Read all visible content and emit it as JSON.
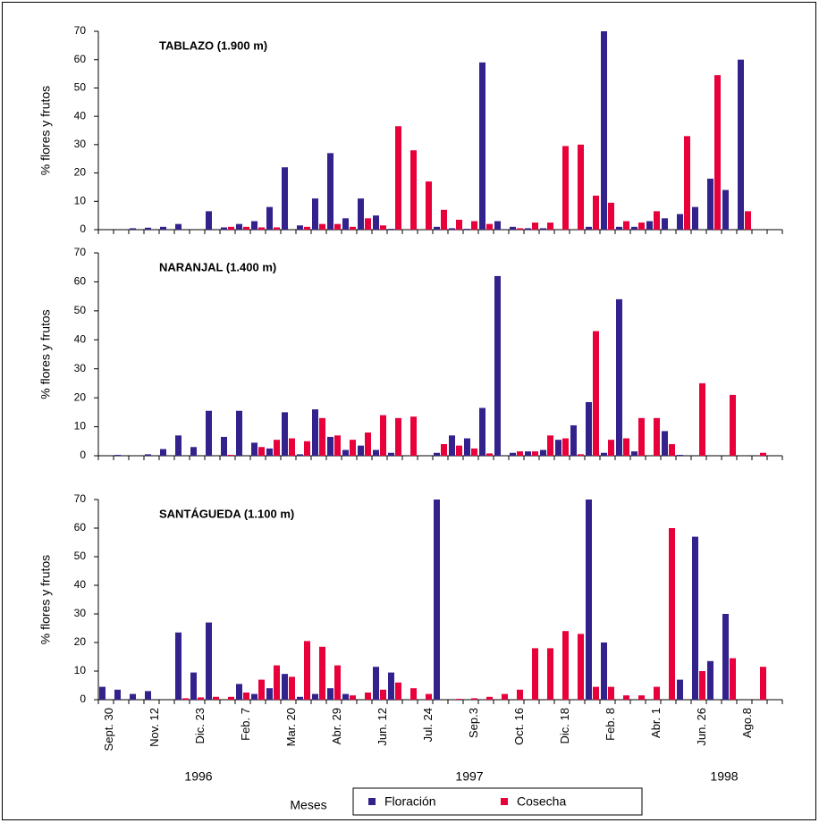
{
  "legend": [
    {
      "name": "Floración",
      "color": "#33218c"
    },
    {
      "name": "Cosecha",
      "color": "#e8003a"
    }
  ],
  "xlabel": "Meses",
  "years": [
    "1996",
    "1997",
    "1998"
  ],
  "chart_data": [
    {
      "type": "bar",
      "title": "TABLAZO (1.900 m)",
      "ylabel": "% flores y frutos",
      "ylim": [
        0,
        70
      ],
      "yticks": [
        0,
        10,
        20,
        30,
        40,
        50,
        60,
        70
      ],
      "series": [
        {
          "values": [
            0,
            0,
            0.5,
            0.7,
            1,
            2,
            0,
            6.5,
            0.8,
            2,
            3,
            8,
            22,
            1.5,
            11,
            27,
            4,
            11,
            5,
            0.3,
            0,
            0,
            1,
            0.5,
            0.3,
            59,
            3,
            1,
            0.5,
            0.5,
            0,
            0,
            1,
            70,
            1,
            1,
            3,
            4,
            5.5,
            8,
            18,
            14,
            60,
            0,
            0
          ]
        },
        {
          "values": [
            0,
            0,
            0,
            0,
            0,
            0,
            0,
            0,
            1,
            1,
            0.8,
            0.8,
            0,
            1,
            2,
            2,
            1,
            4,
            1.5,
            36.5,
            28,
            17,
            7,
            3.5,
            3,
            2,
            0,
            0.5,
            2.5,
            2.5,
            29.5,
            30,
            12,
            9.5,
            3,
            2.5,
            6.5,
            0,
            33,
            0,
            54.5,
            0,
            6.5,
            0,
            0
          ]
        }
      ]
    },
    {
      "type": "bar",
      "title": "NARANJAL (1.400 m)",
      "ylabel": "% flores y frutos",
      "ylim": [
        0,
        70
      ],
      "yticks": [
        0,
        10,
        20,
        30,
        40,
        50,
        60,
        70
      ],
      "series": [
        {
          "values": [
            0,
            0.3,
            0,
            0.5,
            2.3,
            7,
            3,
            15.5,
            6.5,
            15.5,
            4.5,
            2.5,
            15,
            0.5,
            16,
            6.5,
            2,
            3.5,
            2,
            1,
            0,
            0,
            1,
            7,
            6,
            16.5,
            62,
            1,
            1.5,
            2,
            5.5,
            10.5,
            18.5,
            1,
            54,
            1.5,
            0,
            8.5,
            0.3,
            0,
            0,
            0,
            0,
            0,
            0
          ]
        },
        {
          "values": [
            0,
            0,
            0,
            0,
            0,
            0,
            0,
            0,
            0.3,
            0,
            3,
            5.5,
            6,
            5,
            13,
            7,
            5.5,
            8,
            14,
            13,
            13.5,
            0,
            4,
            3.5,
            2.5,
            0.8,
            0,
            1.5,
            1.5,
            7,
            6,
            0.5,
            43,
            5.5,
            6,
            13,
            13,
            4,
            0,
            25,
            0,
            21,
            0,
            1,
            0
          ]
        }
      ]
    },
    {
      "type": "bar",
      "title": "SANTÁGUEDA (1.100 m)",
      "ylabel": "% flores y frutos",
      "ylim": [
        0,
        70
      ],
      "yticks": [
        0,
        10,
        20,
        30,
        40,
        50,
        60,
        70
      ],
      "categories": [
        "Sept. 30",
        null,
        null,
        "Nov. 12",
        null,
        null,
        "Dic. 23",
        null,
        null,
        "Feb. 7",
        null,
        null,
        "Mar. 20",
        null,
        null,
        "Abr. 29",
        null,
        null,
        "Jun. 12",
        null,
        null,
        "Jul. 24",
        null,
        null,
        "Sep.3",
        null,
        null,
        "Oct. 16",
        null,
        null,
        "Dic. 18",
        null,
        null,
        "Feb. 8",
        null,
        null,
        "Abr. 1",
        null,
        null,
        "Jun. 26",
        null,
        null,
        "Ago.8",
        null,
        null
      ],
      "series": [
        {
          "values": [
            4.5,
            3.5,
            2,
            3,
            0,
            23.5,
            9.5,
            27,
            0,
            5.5,
            2,
            4,
            9,
            1,
            2,
            4,
            2,
            0,
            11.5,
            9.5,
            0,
            0,
            70,
            0,
            0,
            0,
            0,
            0,
            0,
            0,
            0,
            0,
            70,
            20,
            0,
            0,
            0,
            0,
            7,
            57,
            13.5,
            30,
            0,
            0,
            0
          ]
        },
        {
          "values": [
            0,
            0,
            0,
            0,
            0,
            0.5,
            0.8,
            1,
            1,
            2.5,
            7,
            12,
            8,
            20.5,
            18.5,
            12,
            1.5,
            2.5,
            3.5,
            6,
            4,
            2,
            0,
            0.3,
            0.5,
            1,
            2,
            3.5,
            18,
            18,
            24,
            23,
            4.5,
            4.5,
            1.5,
            1.5,
            4.5,
            60,
            0,
            10,
            0,
            14.5,
            0,
            11.5,
            0
          ]
        }
      ]
    }
  ]
}
